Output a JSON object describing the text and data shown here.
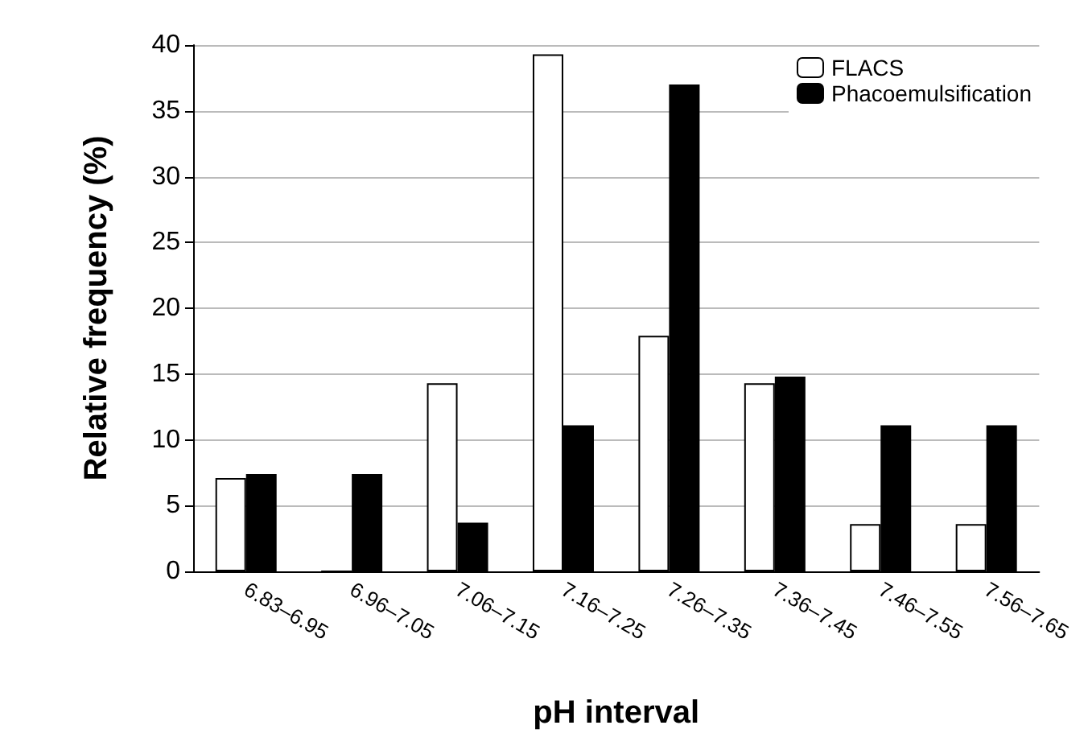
{
  "chart_data": {
    "type": "bar",
    "xlabel": "pH interval",
    "ylabel": "Relative frequency (%)",
    "categories": [
      "6.83–6.95",
      "6.96–7.05",
      "7.06–7.15",
      "7.16–7.25",
      "7.26–7.35",
      "7.36–7.45",
      "7.46–7.55",
      "7.56–7.65"
    ],
    "series": [
      {
        "name": "FLACS",
        "color": "#ffffff",
        "values": [
          7.1,
          0,
          14.3,
          39.3,
          17.9,
          14.3,
          3.6,
          3.6
        ]
      },
      {
        "name": "Phacoemulsification",
        "color": "#000000",
        "values": [
          7.4,
          7.4,
          3.7,
          11.1,
          37.0,
          14.8,
          11.1,
          11.1
        ]
      }
    ],
    "ylim": [
      0,
      40
    ],
    "yticks": [
      0,
      5,
      10,
      15,
      20,
      25,
      30,
      35,
      40
    ],
    "grid": "y",
    "legend": "top right"
  }
}
